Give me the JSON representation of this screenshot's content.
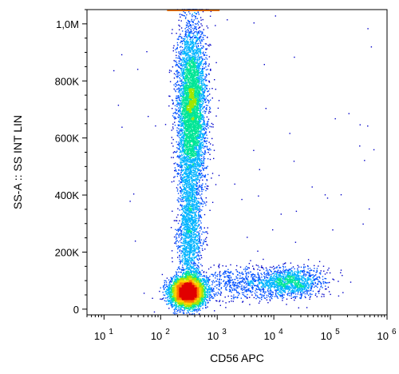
{
  "chart_data": {
    "type": "scatter",
    "subtype": "flow-cytometry density dot plot",
    "title": "",
    "xlabel": "CD56 APC",
    "ylabel": "SS-A :: SS INT LIN",
    "x_scale": "log",
    "x_range": [
      5,
      1000000
    ],
    "x_ticks": [
      {
        "base": "10",
        "exp": "1",
        "value": 10
      },
      {
        "base": "10",
        "exp": "2",
        "value": 100
      },
      {
        "base": "10",
        "exp": "3",
        "value": 1000
      },
      {
        "base": "10",
        "exp": "4",
        "value": 10000
      },
      {
        "base": "10",
        "exp": "5",
        "value": 100000
      },
      {
        "base": "10",
        "exp": "6",
        "value": 1000000
      }
    ],
    "y_scale": "linear",
    "y_range": [
      -20000,
      1050000
    ],
    "y_ticks": [
      {
        "label": "0",
        "value": 0
      },
      {
        "label": "200K",
        "value": 200000
      },
      {
        "label": "400K",
        "value": 400000
      },
      {
        "label": "600K",
        "value": 600000
      },
      {
        "label": "800K",
        "value": 800000
      },
      {
        "label": "1,0M",
        "value": 1000000
      }
    ],
    "grid": false,
    "color_scale": [
      "#0000c8",
      "#0050ff",
      "#00b4ff",
      "#00e696",
      "#a0e600",
      "#ffd200",
      "#ff7800",
      "#e10000"
    ],
    "populations": [
      {
        "center": [
          300,
          60000
        ],
        "spread_log10x": 0.15,
        "spread_y": 25000,
        "relative_count": 0.34
      },
      {
        "center": [
          350,
          700000
        ],
        "spread_log10x": 0.13,
        "spread_y": 150000,
        "relative_count": 0.36
      },
      {
        "center": [
          330,
          250000
        ],
        "spread_log10x": 0.11,
        "spread_y": 140000,
        "relative_count": 0.14
      },
      {
        "center": [
          20000,
          95000
        ],
        "spread_log10x": 0.28,
        "spread_y": 25000,
        "relative_count": 0.08
      },
      {
        "center": [
          3000,
          90000
        ],
        "spread_log10x": 0.45,
        "spread_y": 30000,
        "relative_count": 0.05
      }
    ]
  }
}
